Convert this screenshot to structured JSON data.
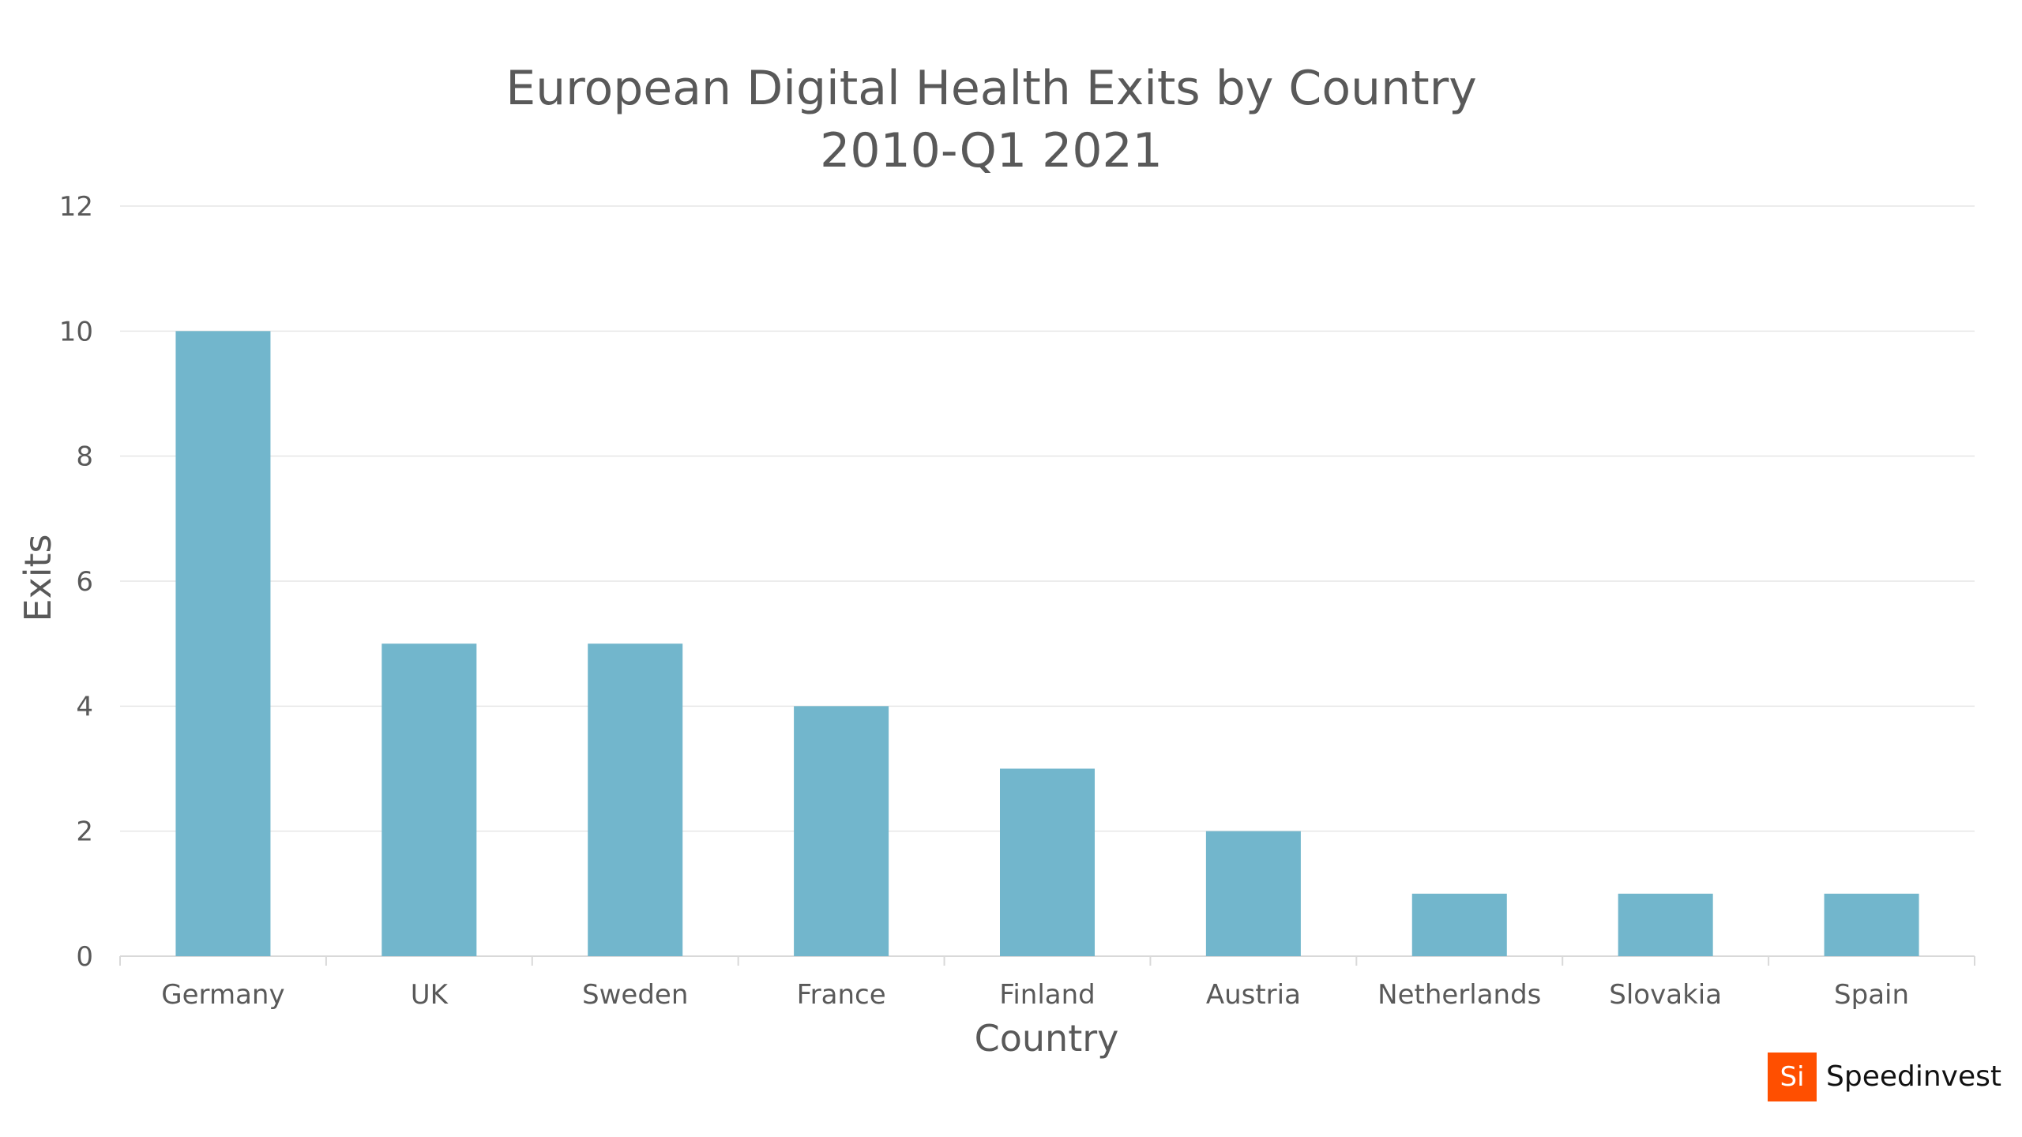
{
  "chart_data": {
    "type": "bar",
    "title": "European Digital Health Exits by Country",
    "subtitle": "2010-Q1 2021",
    "xlabel": "Country",
    "ylabel": "Exits",
    "categories": [
      "Germany",
      "UK",
      "Sweden",
      "France",
      "Finland",
      "Austria",
      "Netherlands",
      "Slovakia",
      "Spain"
    ],
    "values": [
      10,
      5,
      5,
      4,
      3,
      2,
      1,
      1,
      1
    ],
    "ylim": [
      0,
      12
    ],
    "yticks": [
      0,
      2,
      4,
      6,
      8,
      10,
      12
    ],
    "grid": true,
    "bar_color": "#72b6cc"
  },
  "logo": {
    "mark": "Si",
    "name": "Speedinvest",
    "color": "#ff4f00"
  }
}
